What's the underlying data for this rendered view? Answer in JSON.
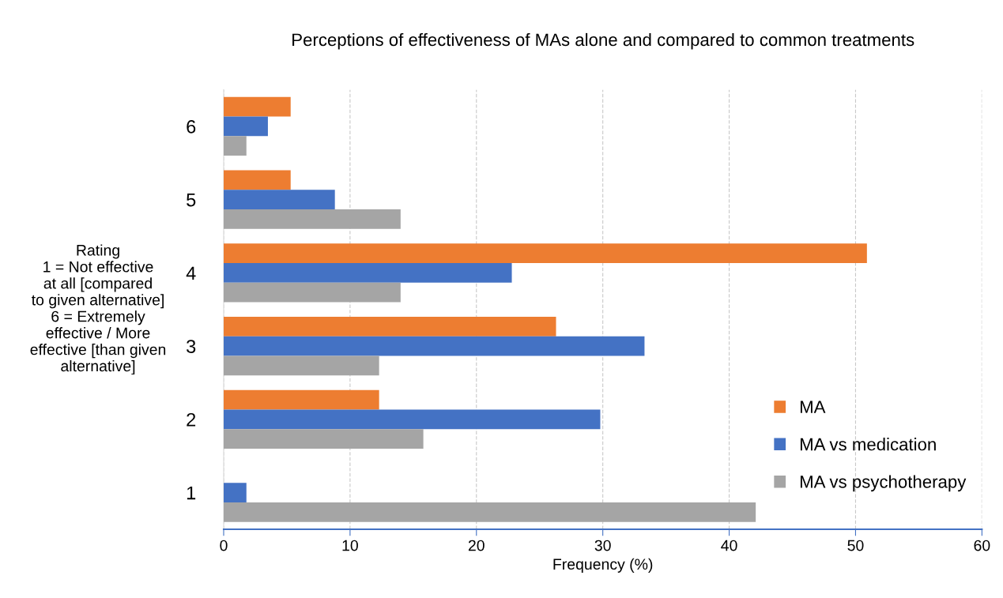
{
  "chart_data": {
    "type": "bar",
    "orientation": "horizontal",
    "title": "Perceptions of effectiveness of MAs alone and compared to common treatments",
    "xlabel": "Frequency (%)",
    "ylabel": "Rating\n1 = Not effective\nat all [compared\nto given alternative]\n6 = Extremely\neffective / More\neffective [than given\nalternative]",
    "categories": [
      "6",
      "5",
      "4",
      "3",
      "2",
      "1"
    ],
    "series": [
      {
        "name": "MA",
        "color": "#ed7d31",
        "values": [
          5.3,
          5.3,
          50.9,
          26.3,
          12.3,
          0
        ]
      },
      {
        "name": "MA vs medication",
        "color": "#4472c4",
        "values": [
          3.5,
          8.8,
          22.8,
          33.3,
          29.8,
          1.8
        ]
      },
      {
        "name": "MA vs psychotherapy",
        "color": "#a5a5a5",
        "values": [
          1.8,
          14.0,
          14.0,
          12.3,
          15.8,
          42.1
        ]
      }
    ],
    "xlim": [
      0,
      60
    ],
    "xticks": [
      0,
      10,
      20,
      30,
      40,
      50,
      60
    ],
    "grid": "x",
    "legend": "bottom right"
  }
}
